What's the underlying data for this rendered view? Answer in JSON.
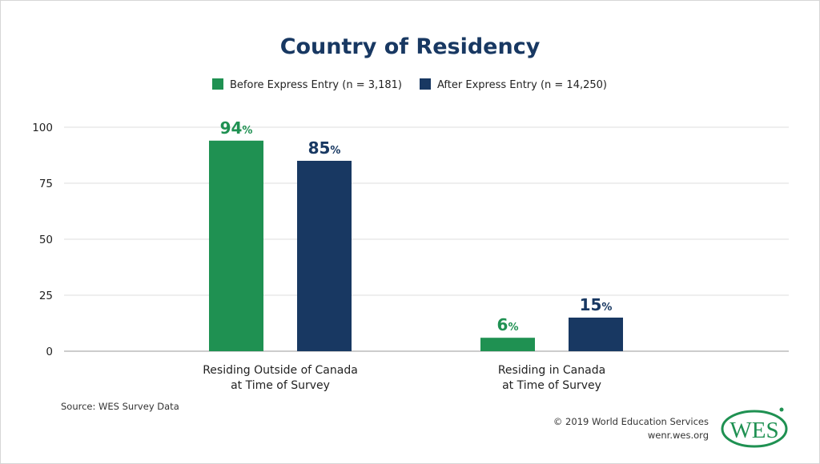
{
  "chart_data": {
    "type": "bar",
    "title": "Country of Residency",
    "categories": [
      "Residing Outside of Canada\nat Time of Survey",
      "Residing in Canada\nat Time of Survey"
    ],
    "series": [
      {
        "name": "Before Express Entry (n = 3,181)",
        "values": [
          94,
          6
        ],
        "color": "#1f9152"
      },
      {
        "name": "After Express Entry (n = 14,250)",
        "values": [
          85,
          15
        ],
        "color": "#183862"
      }
    ],
    "data_labels": [
      [
        "94%",
        "6%"
      ],
      [
        "85%",
        "15%"
      ]
    ],
    "ylim": [
      0,
      100
    ],
    "yticks": [
      "0",
      "25",
      "50",
      "75",
      "100"
    ],
    "grid": true,
    "legend_position": "top"
  },
  "footer": {
    "source": "Source: WES Survey Data",
    "copyright": "© 2019 World Education Services",
    "website": "wenr.wes.org",
    "logo_text": "WES"
  },
  "colors": {
    "title": "#183862",
    "green": "#1f9152",
    "navy": "#183862"
  }
}
